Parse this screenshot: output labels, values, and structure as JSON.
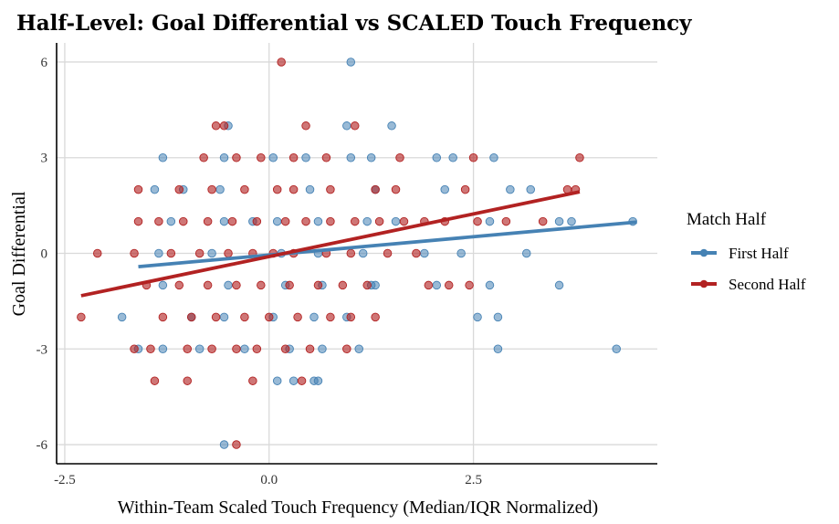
{
  "chart_data": {
    "type": "scatter",
    "title": "Half-Level: Goal Differential vs SCALED Touch Frequency",
    "xlabel": "Within-Team Scaled Touch Frequency (Median/IQR Normalized)",
    "ylabel": "Goal Differential",
    "xlim": [
      -2.6,
      4.75
    ],
    "ylim": [
      -6.6,
      6.6
    ],
    "xticks": [
      -2.5,
      0,
      2.5
    ],
    "xtick_labels": [
      "-2.5",
      "0.0",
      "2.5"
    ],
    "yticks": [
      -6,
      -3,
      0,
      3,
      6
    ],
    "ytick_labels": [
      "-6",
      "-3",
      "0",
      "3",
      "6"
    ],
    "grid": true,
    "legend": {
      "title": "Match Half",
      "placement": "right"
    },
    "series": [
      {
        "name": "First Half",
        "color": "#4682B4",
        "trend": {
          "x": [
            -1.6,
            4.5
          ],
          "y": [
            -0.42,
            0.98
          ]
        },
        "points": [
          [
            1.0,
            6
          ],
          [
            -0.5,
            4
          ],
          [
            0.95,
            4
          ],
          [
            1.5,
            4
          ],
          [
            -1.3,
            3
          ],
          [
            -0.55,
            3
          ],
          [
            0.05,
            3
          ],
          [
            0.45,
            3
          ],
          [
            1.0,
            3
          ],
          [
            1.25,
            3
          ],
          [
            2.05,
            3
          ],
          [
            2.25,
            3
          ],
          [
            2.75,
            3
          ],
          [
            -1.4,
            2
          ],
          [
            -1.05,
            2
          ],
          [
            -0.6,
            2
          ],
          [
            0.5,
            2
          ],
          [
            1.3,
            2
          ],
          [
            2.15,
            2
          ],
          [
            2.95,
            2
          ],
          [
            3.2,
            2
          ],
          [
            -1.2,
            1
          ],
          [
            -0.55,
            1
          ],
          [
            -0.2,
            1
          ],
          [
            0.1,
            1
          ],
          [
            0.6,
            1
          ],
          [
            1.2,
            1
          ],
          [
            1.55,
            1
          ],
          [
            2.7,
            1
          ],
          [
            3.55,
            1
          ],
          [
            3.7,
            1
          ],
          [
            4.45,
            1
          ],
          [
            -1.35,
            0
          ],
          [
            -0.7,
            0
          ],
          [
            0.15,
            0
          ],
          [
            0.6,
            0
          ],
          [
            1.15,
            0
          ],
          [
            1.9,
            0
          ],
          [
            2.35,
            0
          ],
          [
            3.15,
            0
          ],
          [
            -1.3,
            -1
          ],
          [
            -0.5,
            -1
          ],
          [
            0.2,
            -1
          ],
          [
            0.65,
            -1
          ],
          [
            1.25,
            -1
          ],
          [
            1.3,
            -1
          ],
          [
            2.05,
            -1
          ],
          [
            2.7,
            -1
          ],
          [
            3.55,
            -1
          ],
          [
            -1.8,
            -2
          ],
          [
            -0.95,
            -2
          ],
          [
            -0.55,
            -2
          ],
          [
            0.05,
            -2
          ],
          [
            0.55,
            -2
          ],
          [
            0.95,
            -2
          ],
          [
            2.55,
            -2
          ],
          [
            2.8,
            -2
          ],
          [
            -1.6,
            -3
          ],
          [
            -1.3,
            -3
          ],
          [
            -0.85,
            -3
          ],
          [
            -0.3,
            -3
          ],
          [
            0.25,
            -3
          ],
          [
            0.65,
            -3
          ],
          [
            1.1,
            -3
          ],
          [
            2.8,
            -3
          ],
          [
            4.25,
            -3
          ],
          [
            0.1,
            -4
          ],
          [
            0.3,
            -4
          ],
          [
            0.55,
            -4
          ],
          [
            0.6,
            -4
          ],
          [
            -0.55,
            -6
          ]
        ]
      },
      {
        "name": "Second Half",
        "color": "#B22222",
        "trend": {
          "x": [
            -2.3,
            3.8
          ],
          "y": [
            -1.33,
            1.93
          ]
        },
        "points": [
          [
            0.15,
            6
          ],
          [
            -0.65,
            4
          ],
          [
            -0.55,
            4
          ],
          [
            0.45,
            4
          ],
          [
            1.05,
            4
          ],
          [
            -0.8,
            3
          ],
          [
            -0.4,
            3
          ],
          [
            -0.1,
            3
          ],
          [
            0.3,
            3
          ],
          [
            0.7,
            3
          ],
          [
            1.6,
            3
          ],
          [
            2.5,
            3
          ],
          [
            3.8,
            3
          ],
          [
            -1.6,
            2
          ],
          [
            -1.1,
            2
          ],
          [
            -0.7,
            2
          ],
          [
            -0.3,
            2
          ],
          [
            0.1,
            2
          ],
          [
            0.3,
            2
          ],
          [
            0.75,
            2
          ],
          [
            1.3,
            2
          ],
          [
            1.55,
            2
          ],
          [
            2.4,
            2
          ],
          [
            3.65,
            2
          ],
          [
            3.75,
            2
          ],
          [
            -1.6,
            1
          ],
          [
            -1.35,
            1
          ],
          [
            -1.05,
            1
          ],
          [
            -0.75,
            1
          ],
          [
            -0.45,
            1
          ],
          [
            -0.15,
            1
          ],
          [
            0.2,
            1
          ],
          [
            0.45,
            1
          ],
          [
            0.75,
            1
          ],
          [
            1.05,
            1
          ],
          [
            1.35,
            1
          ],
          [
            1.65,
            1
          ],
          [
            1.9,
            1
          ],
          [
            2.15,
            1
          ],
          [
            2.55,
            1
          ],
          [
            2.9,
            1
          ],
          [
            3.35,
            1
          ],
          [
            -2.1,
            0
          ],
          [
            -1.65,
            0
          ],
          [
            -1.2,
            0
          ],
          [
            -0.85,
            0
          ],
          [
            -0.5,
            0
          ],
          [
            -0.2,
            0
          ],
          [
            0.05,
            0
          ],
          [
            0.3,
            0
          ],
          [
            0.7,
            0
          ],
          [
            1.0,
            0
          ],
          [
            1.45,
            0
          ],
          [
            1.8,
            0
          ],
          [
            -1.5,
            -1
          ],
          [
            -1.1,
            -1
          ],
          [
            -0.75,
            -1
          ],
          [
            -0.4,
            -1
          ],
          [
            -0.1,
            -1
          ],
          [
            0.25,
            -1
          ],
          [
            0.6,
            -1
          ],
          [
            0.9,
            -1
          ],
          [
            1.2,
            -1
          ],
          [
            1.95,
            -1
          ],
          [
            2.2,
            -1
          ],
          [
            2.45,
            -1
          ],
          [
            -2.3,
            -2
          ],
          [
            -1.3,
            -2
          ],
          [
            -0.95,
            -2
          ],
          [
            -0.65,
            -2
          ],
          [
            -0.3,
            -2
          ],
          [
            0.0,
            -2
          ],
          [
            0.35,
            -2
          ],
          [
            0.75,
            -2
          ],
          [
            1.0,
            -2
          ],
          [
            1.3,
            -2
          ],
          [
            -1.65,
            -3
          ],
          [
            -1.45,
            -3
          ],
          [
            -1.0,
            -3
          ],
          [
            -0.7,
            -3
          ],
          [
            -0.4,
            -3
          ],
          [
            -0.15,
            -3
          ],
          [
            0.2,
            -3
          ],
          [
            0.5,
            -3
          ],
          [
            0.95,
            -3
          ],
          [
            -1.4,
            -4
          ],
          [
            -1.0,
            -4
          ],
          [
            -0.2,
            -4
          ],
          [
            0.4,
            -4
          ],
          [
            -0.4,
            -6
          ]
        ]
      }
    ]
  }
}
